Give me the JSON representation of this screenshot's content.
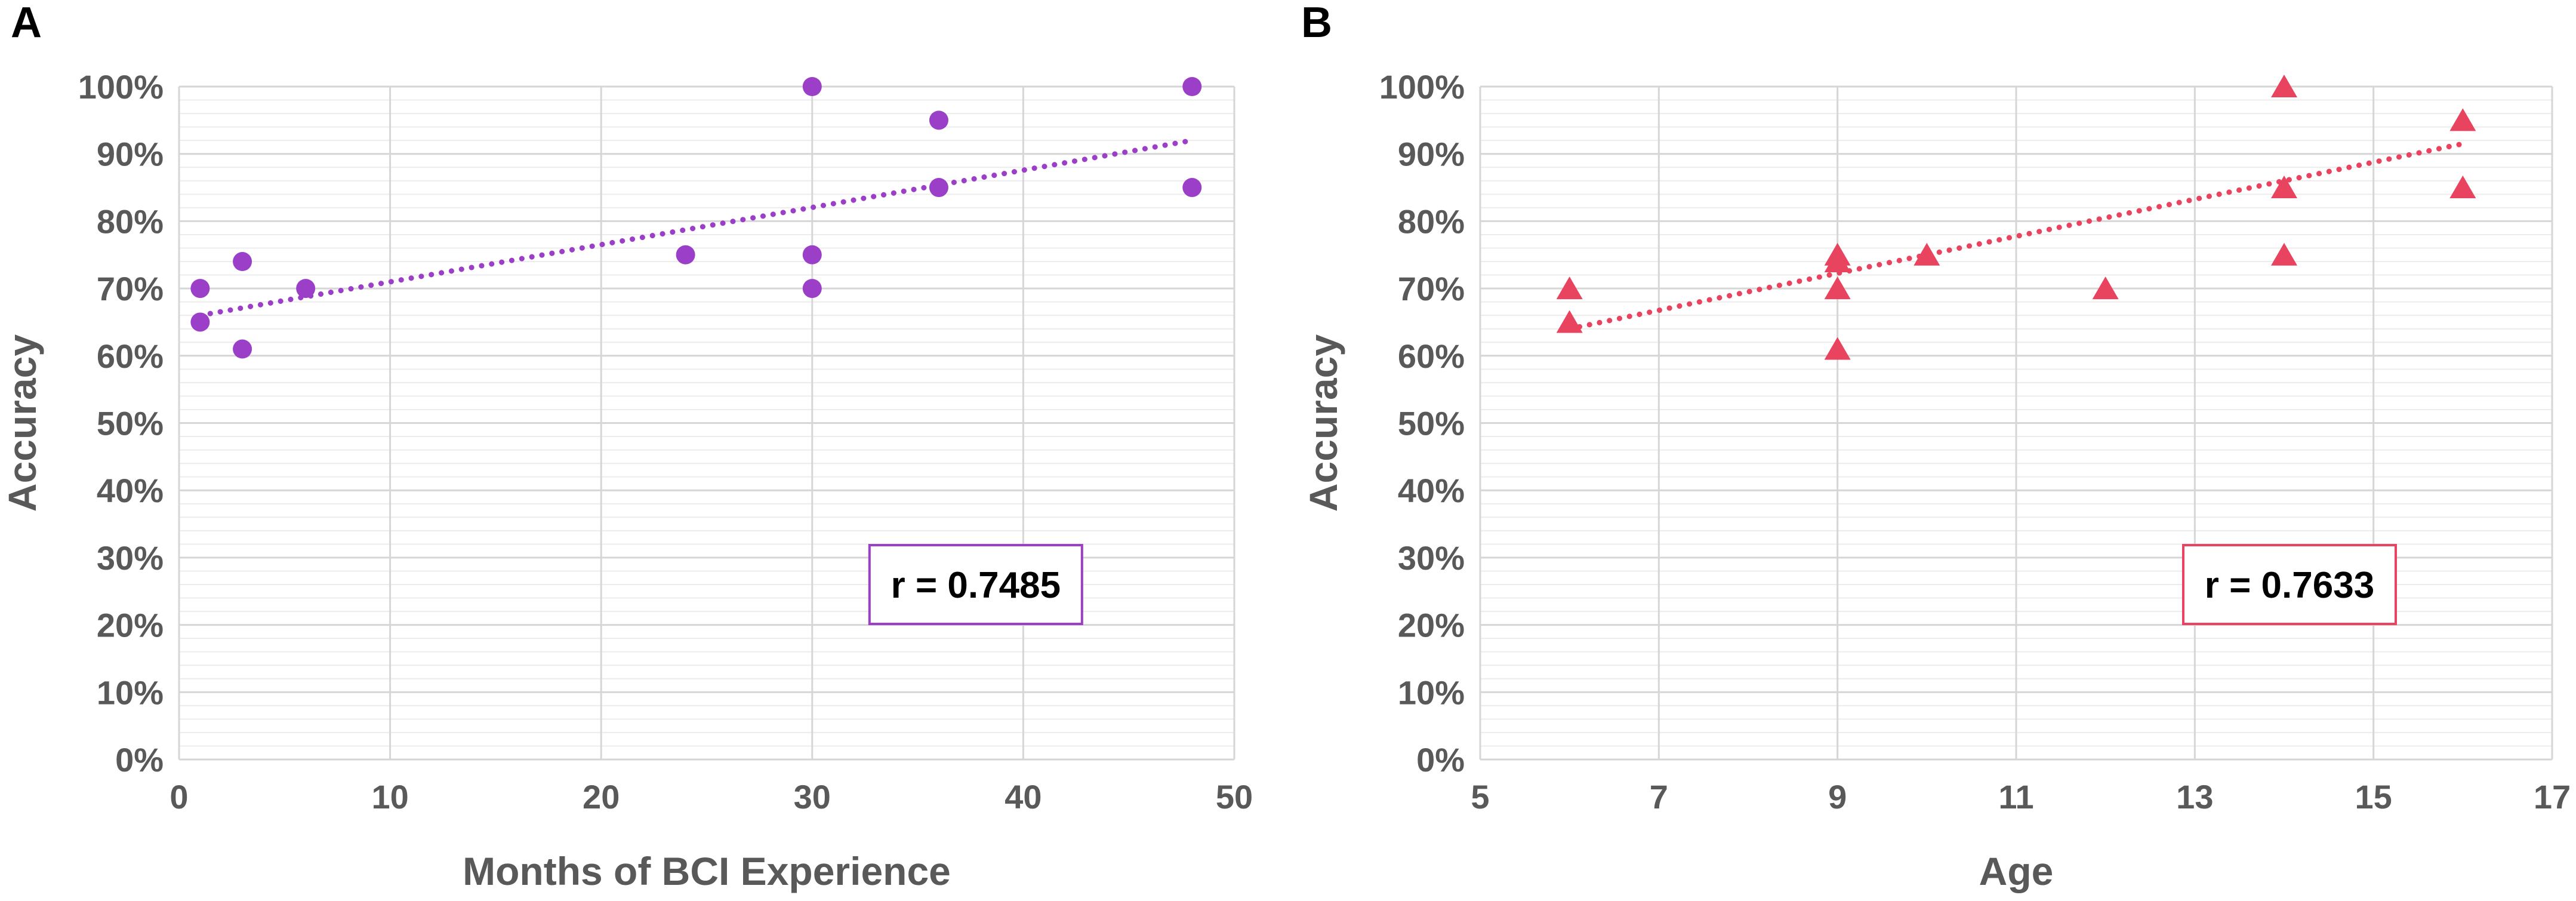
{
  "chart_data": [
    {
      "panel_label": "A",
      "type": "scatter",
      "marker": "circle",
      "color": "#9b3fc8",
      "title": "",
      "xlabel": "Months of BCI Experience",
      "ylabel": "Accuracy",
      "xlim": [
        0,
        50
      ],
      "ylim": [
        0,
        100
      ],
      "x_ticks": [
        0,
        10,
        20,
        30,
        40,
        50
      ],
      "x_tick_labels": [
        "0",
        "10",
        "20",
        "30",
        "40",
        "50"
      ],
      "y_ticks": [
        0,
        10,
        20,
        30,
        40,
        50,
        60,
        70,
        80,
        90,
        100
      ],
      "y_tick_labels": [
        "0%",
        "10%",
        "20%",
        "30%",
        "40%",
        "50%",
        "60%",
        "70%",
        "80%",
        "90%",
        "100%"
      ],
      "grid": true,
      "points": [
        {
          "x": 1,
          "y": 70
        },
        {
          "x": 1,
          "y": 65
        },
        {
          "x": 3,
          "y": 74
        },
        {
          "x": 3,
          "y": 61
        },
        {
          "x": 6,
          "y": 70
        },
        {
          "x": 24,
          "y": 75
        },
        {
          "x": 30,
          "y": 100
        },
        {
          "x": 30,
          "y": 75
        },
        {
          "x": 30,
          "y": 70
        },
        {
          "x": 36,
          "y": 95
        },
        {
          "x": 36,
          "y": 85
        },
        {
          "x": 48,
          "y": 100
        },
        {
          "x": 48,
          "y": 85
        }
      ],
      "trendline": {
        "x": [
          1,
          48
        ],
        "y": [
          66,
          92
        ]
      },
      "annotation": "r = 0.7485"
    },
    {
      "panel_label": "B",
      "type": "scatter",
      "marker": "triangle",
      "color": "#e8435f",
      "title": "",
      "xlabel": "Age",
      "ylabel": "Accuracy",
      "xlim": [
        5,
        17
      ],
      "ylim": [
        0,
        100
      ],
      "x_ticks": [
        5,
        7,
        9,
        11,
        13,
        15,
        17
      ],
      "x_tick_labels": [
        "5",
        "7",
        "9",
        "11",
        "13",
        "15",
        "17"
      ],
      "y_ticks": [
        0,
        10,
        20,
        30,
        40,
        50,
        60,
        70,
        80,
        90,
        100
      ],
      "y_tick_labels": [
        "0%",
        "10%",
        "20%",
        "30%",
        "40%",
        "50%",
        "60%",
        "70%",
        "80%",
        "90%",
        "100%"
      ],
      "grid": true,
      "points": [
        {
          "x": 6,
          "y": 70
        },
        {
          "x": 6,
          "y": 65
        },
        {
          "x": 9,
          "y": 75
        },
        {
          "x": 9,
          "y": 74
        },
        {
          "x": 9,
          "y": 70
        },
        {
          "x": 9,
          "y": 61
        },
        {
          "x": 10,
          "y": 75
        },
        {
          "x": 12,
          "y": 70
        },
        {
          "x": 14,
          "y": 100
        },
        {
          "x": 14,
          "y": 85
        },
        {
          "x": 14,
          "y": 75
        },
        {
          "x": 16,
          "y": 95
        },
        {
          "x": 16,
          "y": 85
        }
      ],
      "trendline": {
        "x": [
          6,
          16
        ],
        "y": [
          64,
          91.5
        ]
      },
      "annotation": "r = 0.7633"
    }
  ]
}
